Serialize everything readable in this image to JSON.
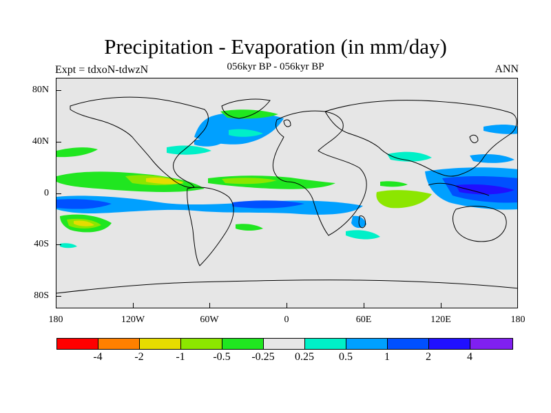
{
  "title": "Precipitation - Evaporation (in mm/day)",
  "subtitle": "056kyr BP - 056kyr BP",
  "experiment_label": "Expt = tdxoN-tdwzN",
  "season_label": "ANN",
  "axes": {
    "y_ticks": [
      "80N",
      "40N",
      "0",
      "40S",
      "80S"
    ],
    "x_ticks": [
      "180",
      "120W",
      "60W",
      "0",
      "60E",
      "120E",
      "180"
    ]
  },
  "colorbar": {
    "colors": [
      "#ff0000",
      "#ff8000",
      "#e6dc00",
      "#8ce600",
      "#20e620",
      "#e6e6e6",
      "#00f0c8",
      "#00a0ff",
      "#0050ff",
      "#2010ff",
      "#8020f0"
    ],
    "labels": [
      "-4",
      "-2",
      "-1",
      "-0.5",
      "-0.25",
      "0.25",
      "0.5",
      "1",
      "2",
      "4"
    ]
  },
  "map_colors": {
    "background": "#e6e6e6",
    "coastline": "#000000"
  }
}
